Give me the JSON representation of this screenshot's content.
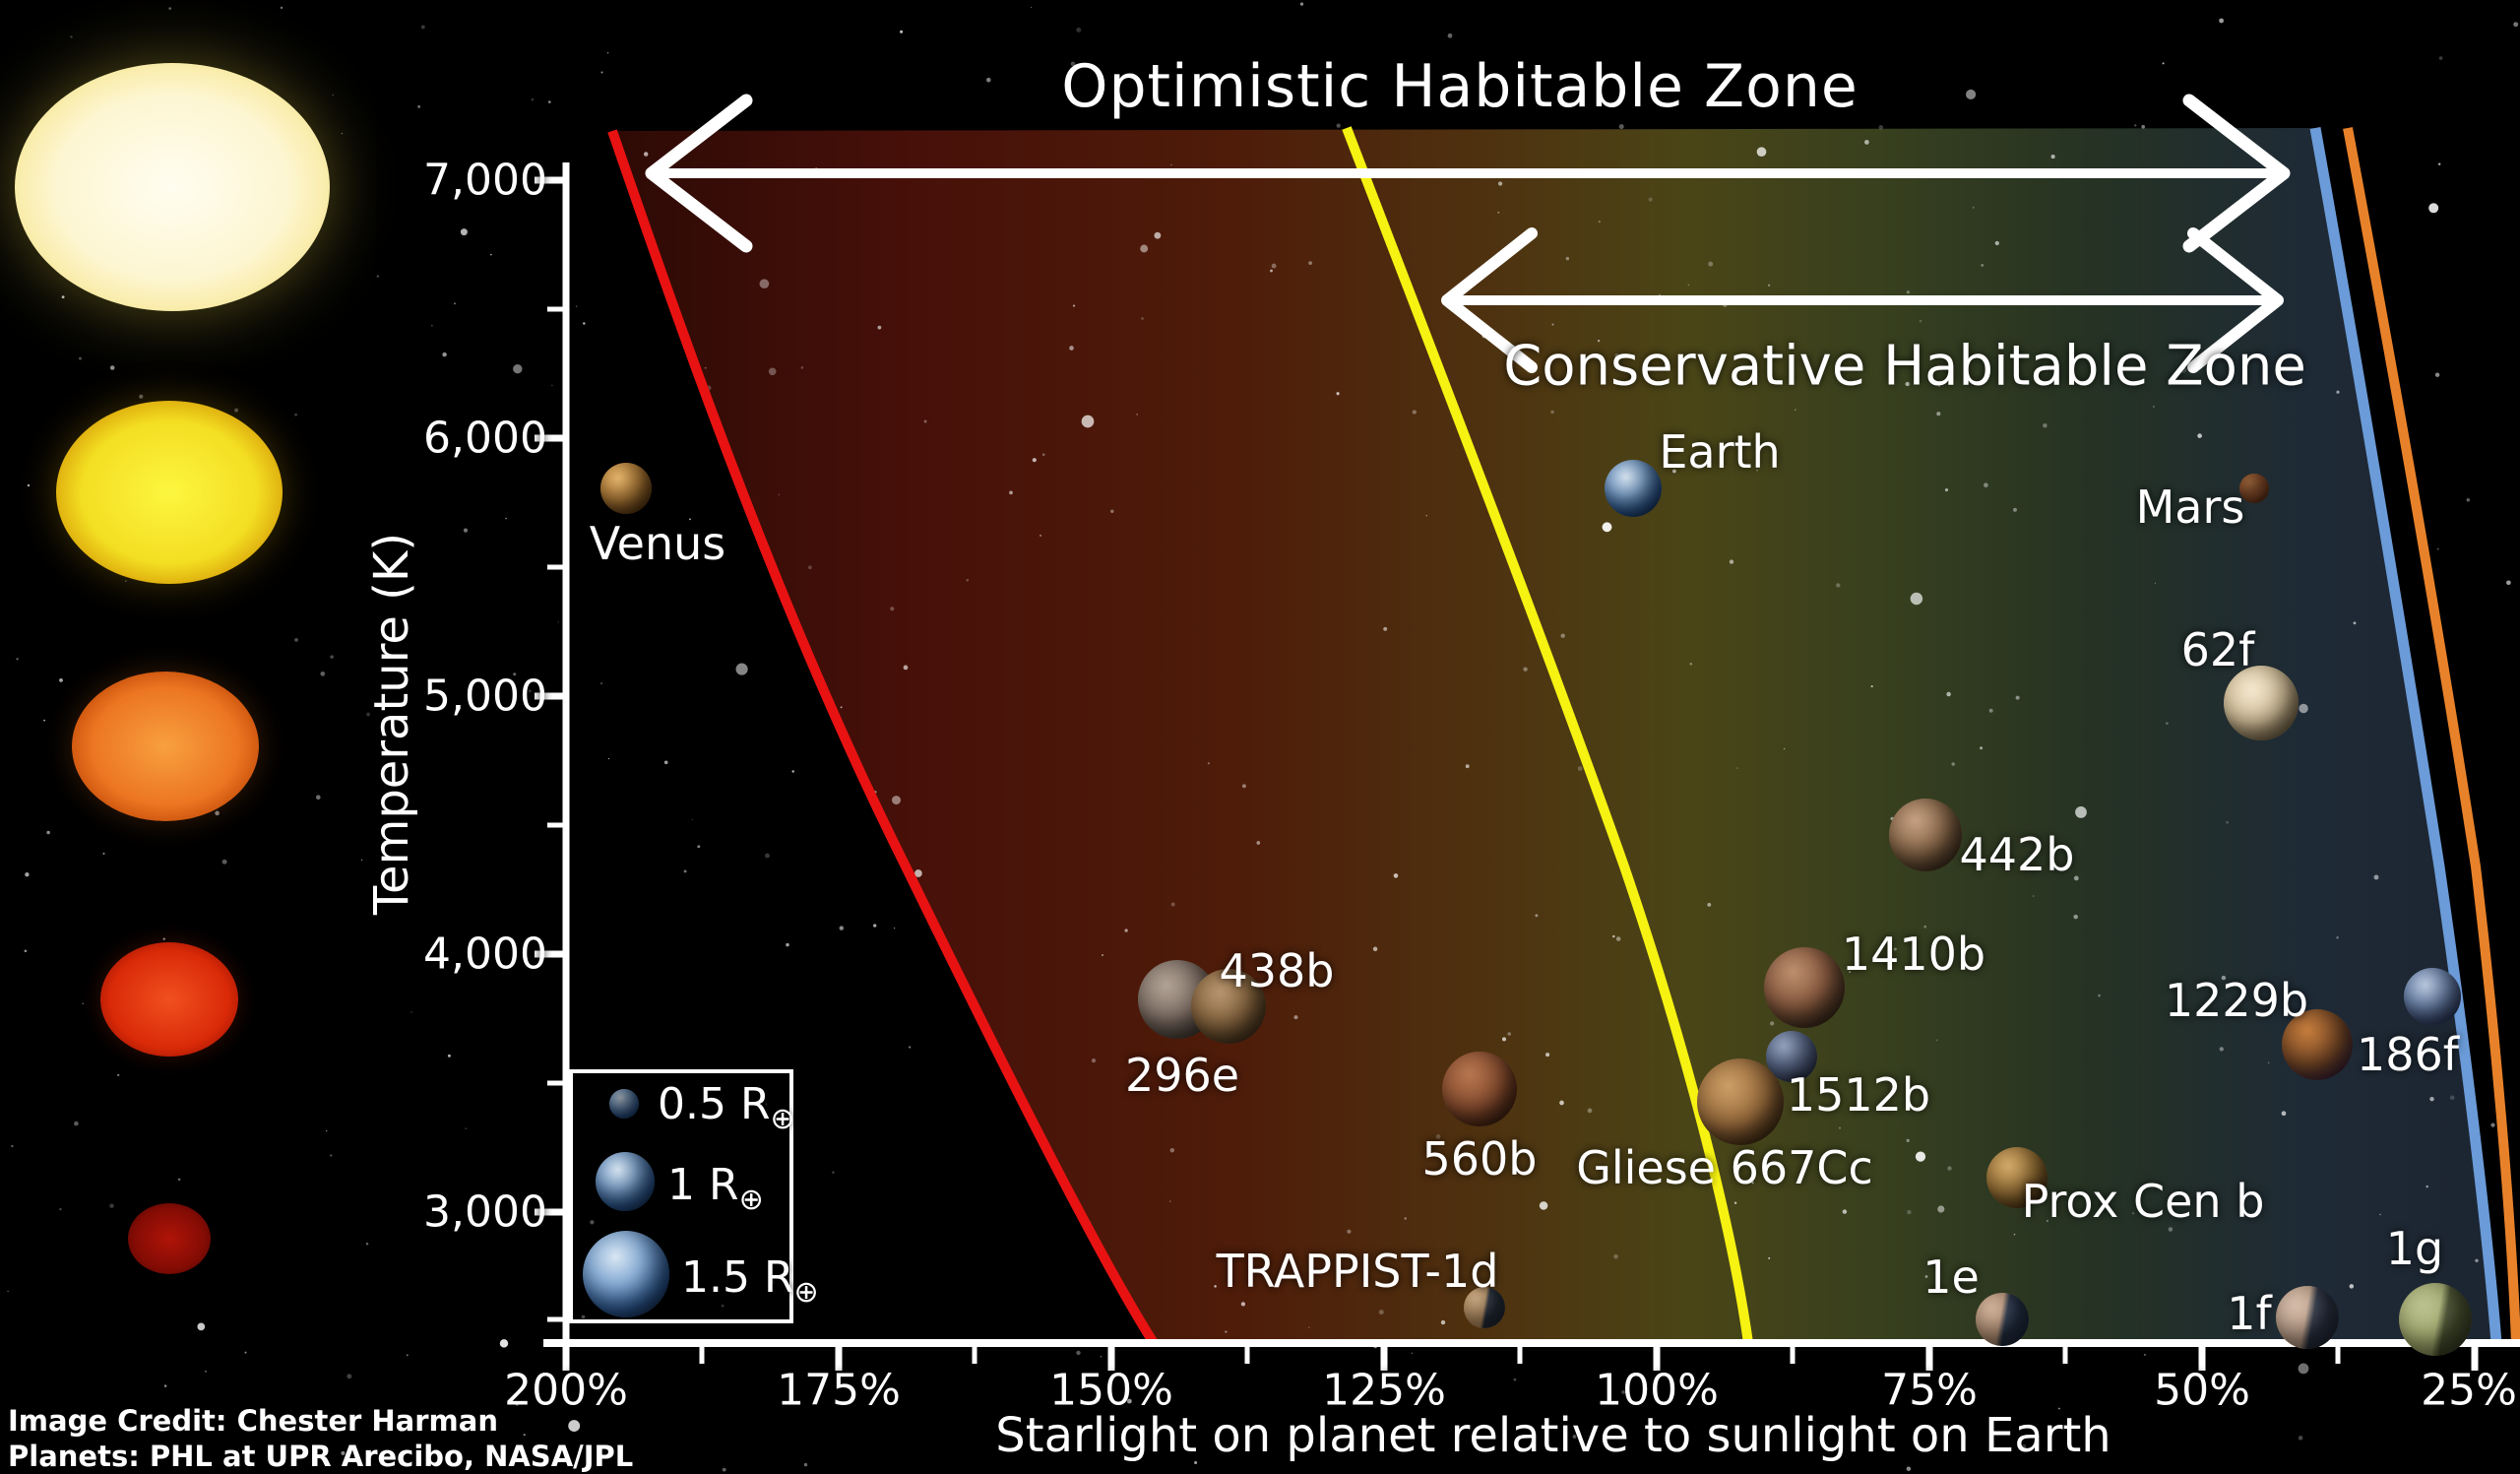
{
  "titles": {
    "optimistic_zone": "Optimistic Habitable Zone",
    "conservative_zone": "Conservative Habitable Zone"
  },
  "axes": {
    "y_label": "Temperature (K)",
    "x_label": "Starlight on planet relative to sunlight on Earth",
    "y_ticks": [
      "7,000",
      "6,000",
      "5,000",
      "4,000",
      "3,000"
    ],
    "x_ticks": [
      "200%",
      "175%",
      "150%",
      "125%",
      "100%",
      "75%",
      "50%",
      "25%"
    ]
  },
  "legend": {
    "items": [
      {
        "label": "0.5 R",
        "sub": "⊕"
      },
      {
        "label": "1 R",
        "sub": "⊕"
      },
      {
        "label": "1.5 R",
        "sub": "⊕"
      }
    ]
  },
  "credits": {
    "line1": "Image Credit: Chester Harman",
    "line2": "Planets:  PHL at UPR Arecibo, NASA/JPL"
  },
  "chart_data": {
    "type": "scatter",
    "xlabel": "Starlight on planet relative to sunlight on Earth",
    "ylabel": "Temperature (K)",
    "x_axis_reversed": true,
    "x_ticks_pct": [
      200,
      175,
      150,
      125,
      100,
      75,
      50,
      25
    ],
    "y_ticks_K": [
      7000,
      6000,
      5000,
      4000,
      3000
    ],
    "zones": [
      {
        "name": "Optimistic Habitable Zone",
        "inner_boundary_color": "#e81212",
        "outer_boundary_color": "#e8822a"
      },
      {
        "name": "Conservative Habitable Zone",
        "inner_boundary_color": "#f6f212",
        "outer_boundary_color": "#6b9bd8"
      }
    ],
    "points": [
      {
        "label": "Venus",
        "starlight_pct": 190,
        "temperature_K": 5800
      },
      {
        "label": "Earth",
        "starlight_pct": 100,
        "temperature_K": 5800
      },
      {
        "label": "Mars",
        "starlight_pct": 43,
        "temperature_K": 5800
      },
      {
        "label": "62f",
        "starlight_pct": 44,
        "temperature_K": 4950
      },
      {
        "label": "442b",
        "starlight_pct": 75,
        "temperature_K": 4450
      },
      {
        "label": "1410b",
        "starlight_pct": 87,
        "temperature_K": 3875
      },
      {
        "label": "438b",
        "starlight_pct": 139,
        "temperature_K": 3800
      },
      {
        "label": "296e",
        "starlight_pct": 144,
        "temperature_K": 3800
      },
      {
        "label": "560b",
        "starlight_pct": 116,
        "temperature_K": 3480
      },
      {
        "label": "1512b",
        "starlight_pct": 88,
        "temperature_K": 3610
      },
      {
        "label": "Gliese 667Cc",
        "starlight_pct": 92,
        "temperature_K": 3440
      },
      {
        "label": "Prox Cen b",
        "starlight_pct": 67,
        "temperature_K": 3140
      },
      {
        "label": "1229b",
        "starlight_pct": 40,
        "temperature_K": 3650
      },
      {
        "label": "186f",
        "starlight_pct": 29,
        "temperature_K": 3840
      },
      {
        "label": "TRAPPIST-1d",
        "starlight_pct": 116,
        "temperature_K": 2630
      },
      {
        "label": "1e",
        "starlight_pct": 68,
        "temperature_K": 2590
      },
      {
        "label": "1f",
        "starlight_pct": 40,
        "temperature_K": 2590
      },
      {
        "label": "1g",
        "starlight_pct": 29,
        "temperature_K": 2590
      }
    ],
    "host_star_column": [
      {
        "temperature_K": 7000,
        "color": "#fdf4c8"
      },
      {
        "temperature_K": 6000,
        "color": "#f2dc1e"
      },
      {
        "temperature_K": 5000,
        "color": "#e87a20"
      },
      {
        "temperature_K": 4000,
        "color": "#dd3510"
      },
      {
        "temperature_K": 3000,
        "color": "#8f0e06"
      }
    ]
  }
}
